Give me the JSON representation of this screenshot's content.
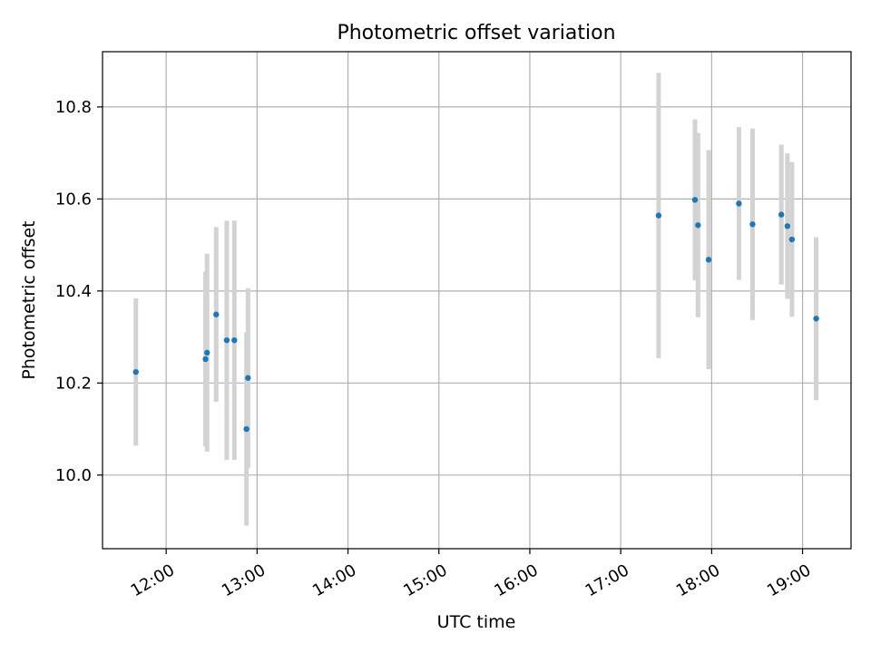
{
  "chart_data": {
    "type": "scatter",
    "title": "Photometric offset variation",
    "xlabel": "UTC time",
    "ylabel": "Photometric offset",
    "x_ticks": [
      "12:00",
      "13:00",
      "14:00",
      "15:00",
      "16:00",
      "17:00",
      "18:00",
      "19:00"
    ],
    "y_ticks": [
      "10.0",
      "10.2",
      "10.4",
      "10.6",
      "10.8"
    ],
    "xlim": [
      "11:18",
      "19:32"
    ],
    "ylim": [
      9.84,
      10.92
    ],
    "grid": true,
    "marker_color": "#1f77b4",
    "errorbar_color": "#d3d3d3",
    "series": [
      {
        "points": [
          {
            "x": "11:40",
            "y": 10.224,
            "err": 0.16
          },
          {
            "x": "12:26",
            "y": 10.252,
            "err": 0.19
          },
          {
            "x": "12:27",
            "y": 10.266,
            "err": 0.215
          },
          {
            "x": "12:33",
            "y": 10.349,
            "err": 0.19
          },
          {
            "x": "12:40",
            "y": 10.293,
            "err": 0.26
          },
          {
            "x": "12:45",
            "y": 10.293,
            "err": 0.26
          },
          {
            "x": "12:53",
            "y": 10.1,
            "err": 0.21
          },
          {
            "x": "12:54",
            "y": 10.211,
            "err": 0.195
          },
          {
            "x": "17:25",
            "y": 10.564,
            "err": 0.31
          },
          {
            "x": "17:49",
            "y": 10.598,
            "err": 0.175
          },
          {
            "x": "17:51",
            "y": 10.543,
            "err": 0.2
          },
          {
            "x": "17:58",
            "y": 10.468,
            "err": 0.238
          },
          {
            "x": "18:18",
            "y": 10.59,
            "err": 0.166
          },
          {
            "x": "18:27",
            "y": 10.545,
            "err": 0.208
          },
          {
            "x": "18:46",
            "y": 10.566,
            "err": 0.152
          },
          {
            "x": "18:50",
            "y": 10.541,
            "err": 0.158
          },
          {
            "x": "18:53",
            "y": 10.512,
            "err": 0.168
          },
          {
            "x": "19:09",
            "y": 10.34,
            "err": 0.177
          }
        ]
      }
    ]
  }
}
